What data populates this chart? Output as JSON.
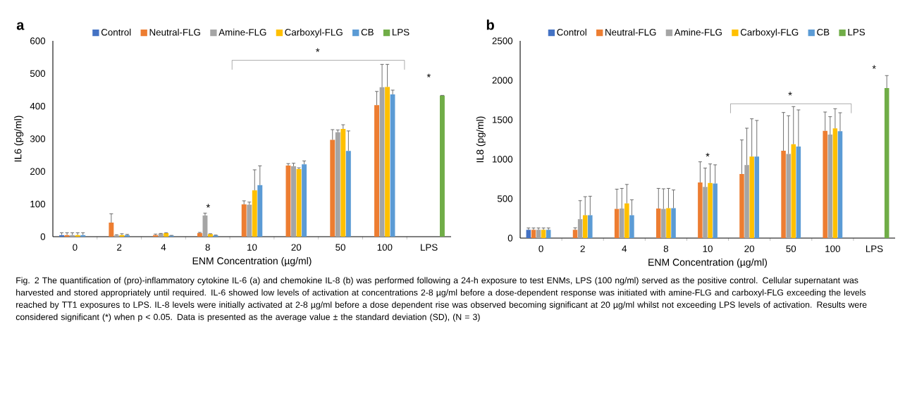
{
  "chart_data": [
    {
      "type": "bar",
      "title": "a",
      "xlabel": "ENM Concentration (µg/ml)",
      "ylabel": "IL6 (pg/ml)",
      "categories": [
        "0",
        "2",
        "4",
        "8",
        "10",
        "20",
        "50",
        "100",
        "LPS"
      ],
      "series": [
        {
          "name": "Control",
          "color": "#4472c4",
          "values": [
            5,
            null,
            null,
            null,
            null,
            null,
            null,
            null,
            null
          ],
          "errors": [
            [
              5,
              12
            ],
            null,
            null,
            null,
            null,
            null,
            null,
            null,
            null
          ]
        },
        {
          "name": "Neutral-FLG",
          "color": "#ed7d31",
          "values": [
            5,
            43,
            5,
            11,
            99,
            218,
            297,
            403,
            null
          ],
          "errors": [
            [
              5,
              12
            ],
            [
              43,
              70
            ],
            [
              5,
              8
            ],
            [
              11,
              13
            ],
            [
              99,
              110
            ],
            [
              218,
              224
            ],
            [
              297,
              328
            ],
            [
              403,
              445
            ],
            null
          ]
        },
        {
          "name": "Amine-FLG",
          "color": "#a5a5a5",
          "values": [
            5,
            4,
            9,
            65,
            98,
            216,
            320,
            458,
            null
          ],
          "errors": [
            [
              5,
              12
            ],
            [
              4,
              6
            ],
            [
              9,
              10
            ],
            [
              65,
              72
            ],
            [
              98,
              106
            ],
            [
              216,
              225
            ],
            [
              320,
              327
            ],
            [
              458,
              528
            ],
            null
          ]
        },
        {
          "name": "Carboxyl-FLG",
          "color": "#ffc000",
          "values": [
            5,
            5,
            11,
            8,
            142,
            207,
            330,
            459,
            null
          ],
          "errors": [
            [
              5,
              12
            ],
            [
              5,
              9
            ],
            [
              11,
              12
            ],
            [
              8,
              9
            ],
            [
              142,
              205
            ],
            [
              207,
              211
            ],
            [
              330,
              343
            ],
            [
              459,
              528
            ],
            null
          ]
        },
        {
          "name": "CB",
          "color": "#5b9bd5",
          "values": [
            5,
            5,
            3,
            4,
            158,
            222,
            263,
            436,
            null
          ],
          "errors": [
            [
              5,
              12
            ],
            [
              5,
              7
            ],
            [
              3,
              4
            ],
            [
              4,
              5
            ],
            [
              158,
              217
            ],
            [
              222,
              232
            ],
            [
              263,
              324
            ],
            [
              436,
              449
            ],
            null
          ]
        },
        {
          "name": "LPS",
          "color": "#70ad47",
          "values": [
            null,
            null,
            null,
            null,
            null,
            null,
            null,
            null,
            433
          ],
          "errors": [
            null,
            null,
            null,
            null,
            null,
            null,
            null,
            null,
            [
              433,
              433
            ]
          ]
        }
      ],
      "ylim": [
        0,
        600
      ],
      "yticks": [
        0,
        100,
        200,
        300,
        400,
        500,
        600
      ],
      "legend": "top",
      "grid": false,
      "annotations": [
        "*",
        "*",
        "*",
        "Fig. 2  The quantification of (pro)-inflammatory cytokine IL-6 (a) and chemokine IL-8 (b) was performed following a 24-h exposure to test ENMs, LPS (100 ng/ml) served as the positive control. Cellular supernatant was harvested and stored appropriately until required. IL-6 showed low levels of activation at concentrations 2-8 µg/ml before a dose-dependent response was initiated with amine-FLG and carboxyl-FLG exceeding the levels reached by TT1 exposures to LPS. IL-8 levels were initially activated at 2-8 µg/ml before a dose dependent rise was observed becoming significant at 20 µg/ml whilst not exceeding LPS levels of activation. Results were considered significant (*) when p < 0.05. Data is presented as the average value ± the standard deviation (SD), (N = 3)"
      ]
    },
    {
      "type": "bar",
      "title": "b",
      "xlabel": "ENM Concentration (µg/ml)",
      "ylabel": "IL8 (pg/ml)",
      "categories": [
        "0",
        "2",
        "4",
        "8",
        "10",
        "20",
        "50",
        "100",
        "LPS"
      ],
      "series": [
        {
          "name": "Control",
          "color": "#4472c4",
          "values": [
            105,
            null,
            null,
            null,
            null,
            null,
            null,
            null,
            null
          ],
          "errors": [
            [
              105,
              128
            ],
            null,
            null,
            null,
            null,
            null,
            null,
            null,
            null
          ]
        },
        {
          "name": "Neutral-FLG",
          "color": "#ed7d31",
          "values": [
            105,
            105,
            370,
            375,
            705,
            813,
            1107,
            1360,
            null
          ],
          "errors": [
            [
              105,
              128
            ],
            [
              105,
              130
            ],
            [
              370,
              620
            ],
            [
              375,
              630
            ],
            [
              705,
              967
            ],
            [
              813,
              1244
            ],
            [
              1107,
              1592
            ],
            [
              1360,
              1598
            ],
            null
          ]
        },
        {
          "name": "Amine-FLG",
          "color": "#a5a5a5",
          "values": [
            105,
            240,
            375,
            370,
            649,
            926,
            1068,
            1312,
            null
          ],
          "errors": [
            [
              105,
              128
            ],
            [
              240,
              475
            ],
            [
              375,
              630
            ],
            [
              370,
              625
            ],
            [
              649,
              887
            ],
            [
              926,
              1393
            ],
            [
              1068,
              1551
            ],
            [
              1312,
              1539
            ],
            null
          ]
        },
        {
          "name": "Carboxyl-FLG",
          "color": "#ffc000",
          "values": [
            105,
            290,
            440,
            380,
            699,
            1033,
            1190,
            1390,
            null
          ],
          "errors": [
            [
              105,
              128
            ],
            [
              290,
              525
            ],
            [
              440,
              680
            ],
            [
              380,
              630
            ],
            [
              699,
              940
            ],
            [
              1033,
              1512
            ],
            [
              1190,
              1667
            ],
            [
              1390,
              1640
            ],
            null
          ]
        },
        {
          "name": "CB",
          "color": "#5b9bd5",
          "values": [
            105,
            290,
            290,
            380,
            693,
            1033,
            1161,
            1354,
            null
          ],
          "errors": [
            [
              105,
              128
            ],
            [
              290,
              530
            ],
            [
              290,
              485
            ],
            [
              380,
              610
            ],
            [
              693,
              929
            ],
            [
              1033,
              1491
            ],
            [
              1161,
              1625
            ],
            [
              1354,
              1589
            ],
            null
          ]
        },
        {
          "name": "LPS",
          "color": "#70ad47",
          "values": [
            null,
            null,
            null,
            null,
            null,
            null,
            null,
            null,
            1902
          ],
          "errors": [
            null,
            null,
            null,
            null,
            null,
            null,
            null,
            null,
            [
              1902,
              2060
            ]
          ]
        }
      ],
      "ylim": [
        0,
        2500
      ],
      "yticks": [
        0,
        500,
        1000,
        1500,
        2000,
        2500
      ],
      "legend": "top",
      "grid": false,
      "annotations": [
        "*",
        "*",
        "*"
      ]
    }
  ]
}
